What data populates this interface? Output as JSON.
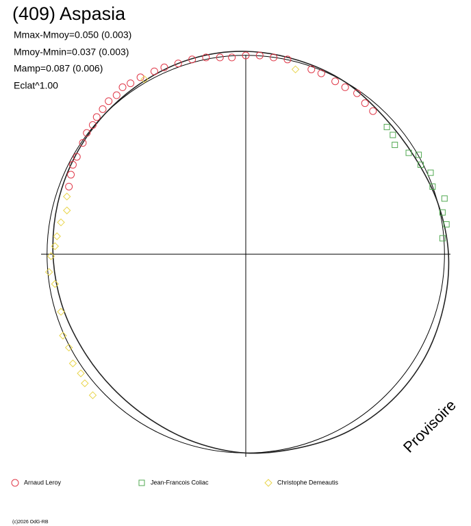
{
  "chart_data": {
    "type": "polar-scatter",
    "title": "(409) Aspasia",
    "annotations": [
      "Mmax-Mmoy=0.050 (0.003)",
      "Mmoy-Mmin=0.037 (0.003)",
      "Mamp=0.087 (0.006)",
      "Eclat^1.00"
    ],
    "watermark": "Provisoire",
    "footer": "(c)2026 OdG-RB",
    "xlim": [
      -1.03,
      1.03
    ],
    "ylim": [
      -1.02,
      1.0
    ],
    "circle_r": 1,
    "curve": {
      "theta": [
        0,
        15,
        30,
        45,
        60,
        75,
        90,
        105,
        120,
        135,
        150,
        165,
        180,
        195,
        210,
        225,
        240,
        255,
        270,
        285,
        300,
        315,
        330,
        345
      ],
      "r": [
        1.02,
        1.01,
        1.0,
        0.98,
        0.98,
        1.0,
        1.02,
        1.03,
        1.04,
        1.04,
        1.03,
        1.01,
        1.0,
        0.98,
        0.96,
        0.95,
        0.95,
        0.96,
        0.97,
        0.98,
        0.99,
        1.0,
        1.01,
        1.02
      ]
    },
    "series": [
      {
        "name": "Arnaud Leroy",
        "marker": "circle",
        "color": "#e03848",
        "x": [
          -0.89,
          -0.88,
          -0.87,
          -0.85,
          -0.82,
          -0.8,
          -0.77,
          -0.75,
          -0.72,
          -0.69,
          -0.65,
          -0.62,
          -0.58,
          -0.53,
          -0.46,
          -0.41,
          -0.34,
          -0.27,
          -0.2,
          -0.13,
          -0.07,
          0.0,
          0.07,
          0.14,
          0.21,
          0.33,
          0.38,
          0.45,
          0.5,
          0.56,
          0.6,
          0.64
        ],
        "y": [
          0.34,
          0.4,
          0.45,
          0.49,
          0.56,
          0.61,
          0.65,
          0.69,
          0.73,
          0.77,
          0.8,
          0.84,
          0.86,
          0.89,
          0.92,
          0.94,
          0.96,
          0.98,
          0.99,
          0.99,
          0.99,
          1.0,
          1.0,
          0.99,
          0.98,
          0.93,
          0.91,
          0.87,
          0.84,
          0.81,
          0.76,
          0.72
        ]
      },
      {
        "name": "Jean-Francois Coliac",
        "marker": "square",
        "color": "#50a850",
        "x": [
          0.71,
          0.74,
          0.75,
          0.82,
          0.87,
          0.88,
          0.93,
          0.94,
          1.0,
          0.99,
          1.01,
          0.99
        ],
        "y": [
          0.64,
          0.6,
          0.55,
          0.51,
          0.5,
          0.45,
          0.41,
          0.34,
          0.28,
          0.21,
          0.15,
          0.08
        ]
      },
      {
        "name": "Christophe Demeautis",
        "marker": "diamond",
        "color": "#e8d448",
        "x": [
          -0.51,
          0.25,
          -0.9,
          -0.9,
          -0.93,
          -0.95,
          -0.96,
          -0.98,
          -0.99,
          -0.96,
          -0.93,
          -0.92,
          -0.89,
          -0.87,
          -0.83,
          -0.81,
          -0.77
        ],
        "y": [
          0.88,
          0.93,
          0.29,
          0.22,
          0.16,
          0.09,
          0.04,
          -0.01,
          -0.09,
          -0.15,
          -0.29,
          -0.41,
          -0.47,
          -0.55,
          -0.6,
          -0.65,
          -0.71
        ]
      }
    ]
  }
}
